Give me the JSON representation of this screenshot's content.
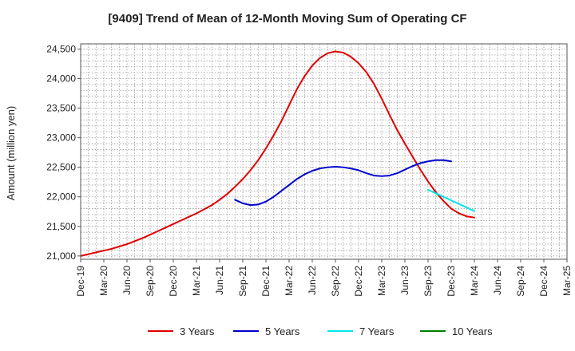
{
  "chart_data": {
    "type": "line",
    "title": "[9409]  Trend of Mean of 12-Month Moving Sum of Operating CF",
    "xlabel": "",
    "ylabel": "Amount (million yen)",
    "ylim": [
      21000,
      24500
    ],
    "yticks": [
      21000,
      21500,
      22000,
      22500,
      23000,
      23500,
      24000,
      24500
    ],
    "ytick_labels": [
      "21,000",
      "21,500",
      "22,000",
      "22,500",
      "23,000",
      "23,500",
      "24,000",
      "24,500"
    ],
    "x_months": [
      "Dec-19",
      "Jan-20",
      "Feb-20",
      "Mar-20",
      "Apr-20",
      "May-20",
      "Jun-20",
      "Jul-20",
      "Aug-20",
      "Sep-20",
      "Oct-20",
      "Nov-20",
      "Dec-20",
      "Jan-21",
      "Feb-21",
      "Mar-21",
      "Apr-21",
      "May-21",
      "Jun-21",
      "Jul-21",
      "Aug-21",
      "Sep-21",
      "Oct-21",
      "Nov-21",
      "Dec-21",
      "Jan-22",
      "Feb-22",
      "Mar-22",
      "Apr-22",
      "May-22",
      "Jun-22",
      "Jul-22",
      "Aug-22",
      "Sep-22",
      "Oct-22",
      "Nov-22",
      "Dec-22",
      "Jan-23",
      "Feb-23",
      "Mar-23",
      "Apr-23",
      "May-23",
      "Jun-23",
      "Jul-23",
      "Aug-23",
      "Sep-23",
      "Oct-23",
      "Nov-23",
      "Dec-23",
      "Jan-24",
      "Feb-24",
      "Mar-24",
      "Apr-24",
      "May-24",
      "Jun-24",
      "Jul-24",
      "Aug-24",
      "Sep-24",
      "Oct-24",
      "Nov-24",
      "Dec-24",
      "Jan-25",
      "Feb-25",
      "Mar-25"
    ],
    "x_tick_labels": [
      "Dec-19",
      "Mar-20",
      "Jun-20",
      "Sep-20",
      "Dec-20",
      "Mar-21",
      "Jun-21",
      "Sep-21",
      "Dec-21",
      "Mar-22",
      "Jun-22",
      "Sep-22",
      "Dec-22",
      "Mar-23",
      "Jun-23",
      "Sep-23",
      "Dec-23",
      "Mar-24",
      "Jun-24",
      "Sep-24",
      "Dec-24",
      "Mar-25"
    ],
    "grid": true,
    "legend_position": "bottom",
    "series": [
      {
        "name": "3 Years",
        "color": "#e00000",
        "start": "Dec-19",
        "values": [
          21000,
          21030,
          21060,
          21090,
          21120,
          21160,
          21200,
          21250,
          21300,
          21360,
          21420,
          21480,
          21540,
          21600,
          21660,
          21720,
          21790,
          21860,
          21950,
          22050,
          22170,
          22300,
          22450,
          22620,
          22820,
          23040,
          23280,
          23550,
          23820,
          24040,
          24220,
          24350,
          24430,
          24460,
          24440,
          24370,
          24260,
          24110,
          23910,
          23660,
          23390,
          23130,
          22900,
          22680,
          22460,
          22260,
          22080,
          21930,
          21800,
          21720,
          21670,
          21650
        ]
      },
      {
        "name": "5 Years",
        "color": "#0000cc",
        "start": "Aug-21",
        "values": [
          21950,
          21890,
          21860,
          21870,
          21920,
          22000,
          22100,
          22200,
          22300,
          22380,
          22440,
          22480,
          22500,
          22510,
          22500,
          22480,
          22450,
          22400,
          22360,
          22350,
          22360,
          22400,
          22460,
          22520,
          22570,
          22600,
          22620,
          22620,
          22600
        ]
      },
      {
        "name": "7 Years",
        "color": "#00e5e5",
        "start": "Sep-23",
        "values": [
          22120,
          22060,
          22000,
          21940,
          21880,
          21820,
          21760
        ]
      },
      {
        "name": "10 Years",
        "color": "#008000",
        "start": "Sep-23",
        "values": []
      }
    ]
  }
}
